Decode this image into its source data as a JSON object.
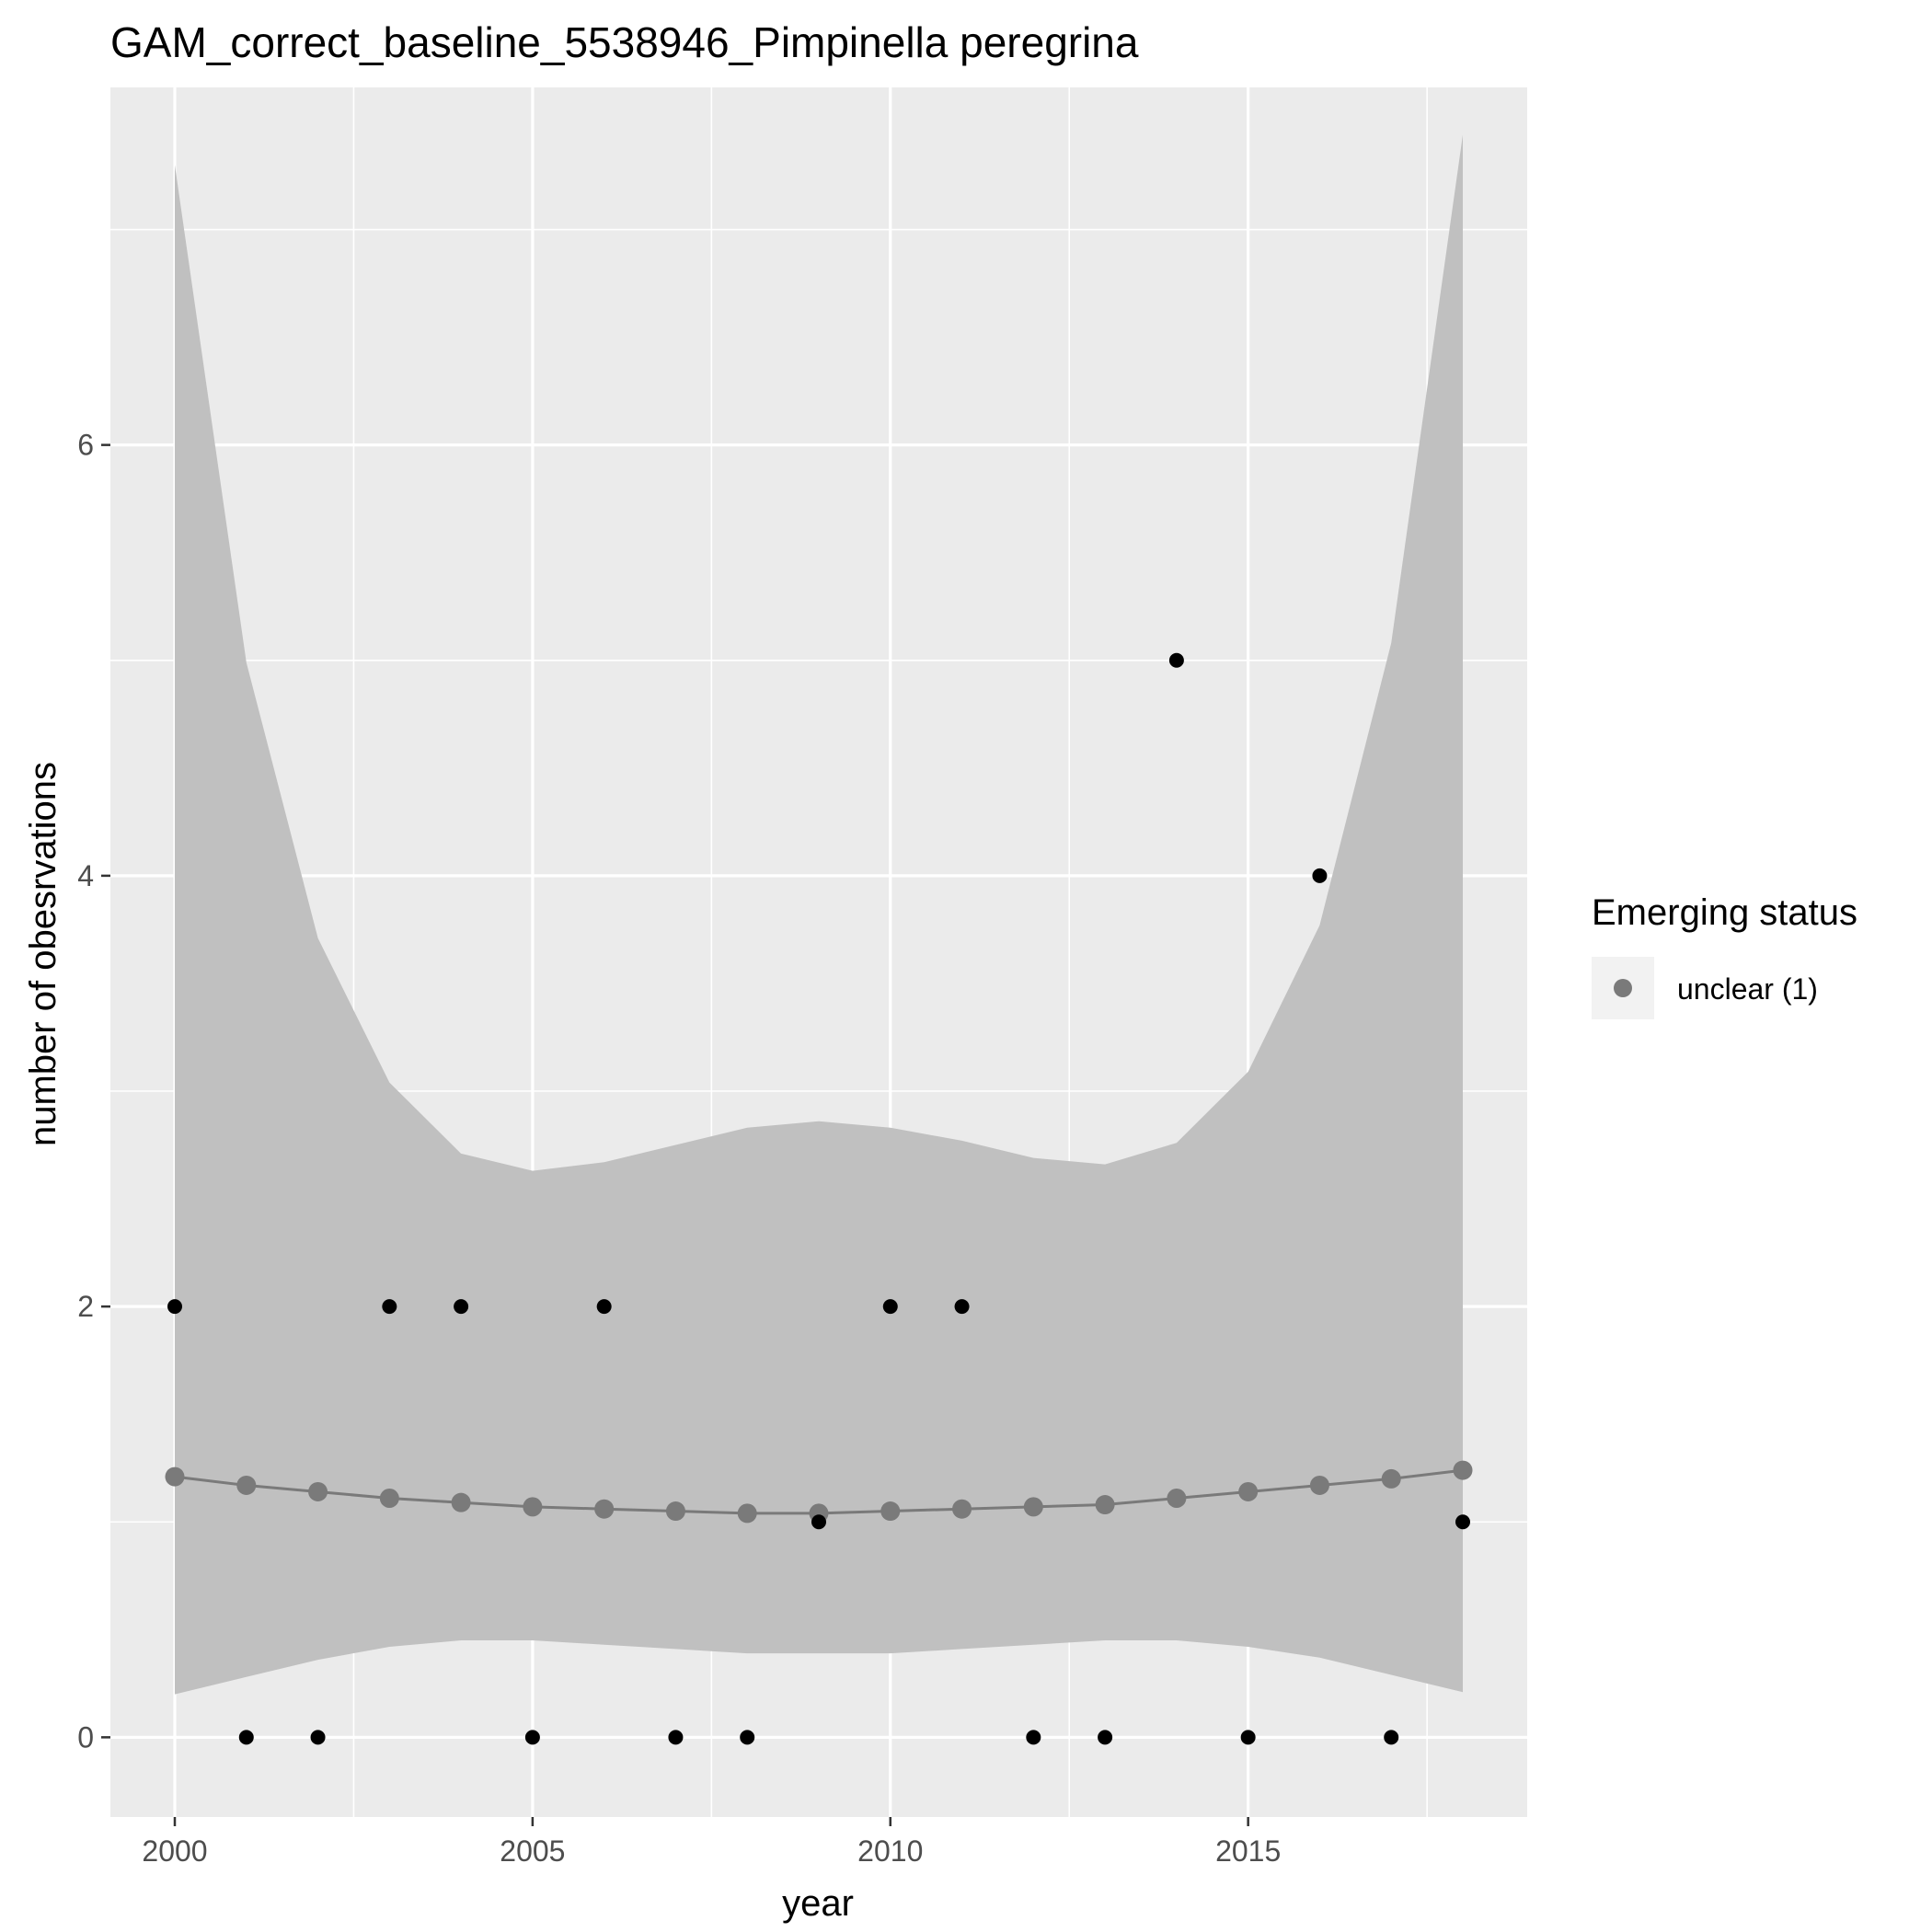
{
  "chart_data": {
    "type": "scatter",
    "title": "GAM_correct_baseline_5538946_Pimpinella peregrina",
    "xlabel": "year",
    "ylabel": "number of obesrvations",
    "xlim": [
      1999.1,
      2018.9
    ],
    "ylim": [
      -0.37,
      7.66
    ],
    "x_ticks": [
      2000,
      2005,
      2010,
      2015
    ],
    "y_ticks": [
      0,
      2,
      4,
      6
    ],
    "grid": true,
    "legend": {
      "title": "Emerging status",
      "position": "right",
      "entries": [
        {
          "label": "unclear (1)",
          "color": "#7a7a7a"
        }
      ]
    },
    "colors": {
      "panel": "#ebebeb",
      "grid": "#ffffff",
      "ribbon": "#bebebe",
      "fit": "#7a7a7a",
      "observed": "#000000"
    },
    "observed": {
      "x": [
        2000,
        2001,
        2002,
        2003,
        2004,
        2005,
        2006,
        2007,
        2008,
        2009,
        2010,
        2011,
        2012,
        2013,
        2014,
        2015,
        2016,
        2017,
        2018
      ],
      "y": [
        2,
        0,
        0,
        2,
        2,
        0,
        2,
        0,
        0,
        1,
        2,
        2,
        0,
        0,
        5,
        0,
        4,
        0,
        1
      ]
    },
    "fitted": {
      "x": [
        2000,
        2001,
        2002,
        2003,
        2004,
        2005,
        2006,
        2007,
        2008,
        2009,
        2010,
        2011,
        2012,
        2013,
        2014,
        2015,
        2016,
        2017,
        2018
      ],
      "y": [
        1.21,
        1.17,
        1.14,
        1.11,
        1.09,
        1.07,
        1.06,
        1.05,
        1.04,
        1.04,
        1.05,
        1.06,
        1.07,
        1.08,
        1.11,
        1.14,
        1.17,
        1.2,
        1.24
      ],
      "lower": [
        0.2,
        0.28,
        0.36,
        0.42,
        0.45,
        0.45,
        0.43,
        0.41,
        0.39,
        0.39,
        0.39,
        0.41,
        0.43,
        0.45,
        0.45,
        0.42,
        0.37,
        0.29,
        0.21
      ],
      "upper": [
        7.3,
        4.99,
        3.71,
        3.04,
        2.71,
        2.63,
        2.67,
        2.75,
        2.83,
        2.86,
        2.83,
        2.77,
        2.69,
        2.66,
        2.76,
        3.09,
        3.77,
        5.08,
        7.44
      ]
    }
  }
}
